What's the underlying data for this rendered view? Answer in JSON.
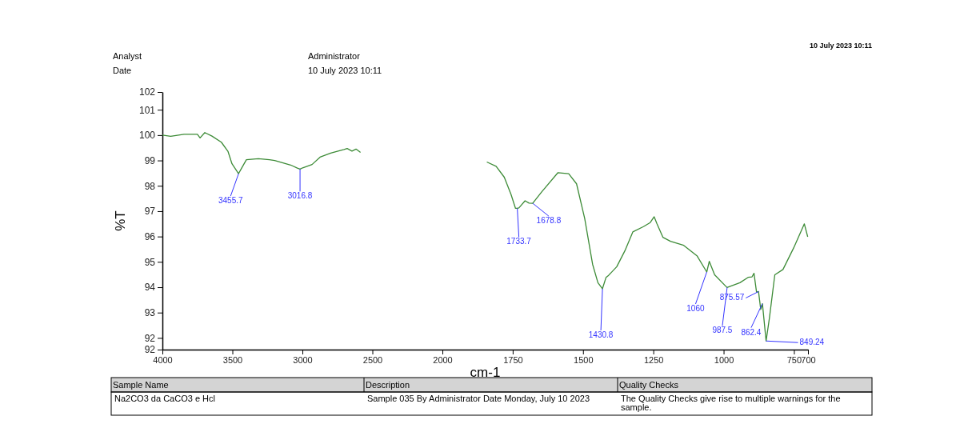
{
  "chart_data": [
    {
      "type": "line",
      "ylabel": "%T",
      "xlim": [
        4000,
        2000
      ],
      "xticks": [
        4000,
        3500,
        3000,
        2500,
        2000
      ],
      "ylim": [
        91.54,
        101.7
      ],
      "yticks": [
        {
          "value": 101.7,
          "label": "102"
        },
        101,
        100,
        99,
        98,
        97,
        96,
        95,
        94,
        93,
        92,
        {
          "value": 91.54,
          "label": "92"
        }
      ],
      "marker": "none",
      "line_style": "solid",
      "series": [
        {
          "color": "#3d8b37",
          "x": [
            4000,
            3941,
            3846,
            3750,
            3731,
            3697,
            3646,
            3579,
            3531,
            3503,
            3456,
            3434,
            3400,
            3314,
            3236,
            3198,
            3084,
            3036,
            3017,
            2998,
            2931,
            2874,
            2798,
            2703,
            2680,
            2646,
            2617,
            2585
          ],
          "values": [
            100.0,
            99.95,
            100.03,
            100.03,
            99.89,
            100.1,
            99.96,
            99.72,
            99.35,
            98.87,
            98.48,
            98.7,
            99.03,
            99.07,
            99.03,
            99.0,
            98.82,
            98.7,
            98.66,
            98.71,
            98.84,
            99.13,
            99.29,
            99.43,
            99.47,
            99.37,
            99.45,
            99.32
          ]
        }
      ],
      "annotations": [
        "Analyst",
        "Administrator",
        "Date",
        "10 July 2023 10:11",
        "10 July 2023 10:11",
        "Sample Name",
        "Description",
        "Quality Checks",
        "Na2CO3 da CaCO3 e Hcl",
        "Sample 035 By Administrator Date Monday, July 10 2023",
        "The Quality Checks give rise to multiple warnings for the sample.",
        {
          "text": "3455.7",
          "x": 3455.7,
          "y": 98.48
        },
        {
          "text": "3016.8",
          "x": 3016.8,
          "y": 98.66
        }
      ]
    },
    {
      "type": "line",
      "xlabel": "cm-1",
      "xlim": [
        2000,
        700
      ],
      "xticks": [
        1750,
        1500,
        1250,
        1000,
        750,
        700
      ],
      "ylim": [
        91.54,
        101.7
      ],
      "tick_labels": "x",
      "marker": "none",
      "line_style": "solid",
      "series": [
        {
          "color": "#3d8b37",
          "x": [
            1842,
            1809,
            1780,
            1756,
            1740,
            1734,
            1728,
            1706,
            1692,
            1679,
            1647,
            1589,
            1551,
            1523,
            1494,
            1466,
            1447,
            1431,
            1418,
            1409,
            1380,
            1351,
            1323,
            1285,
            1261,
            1247,
            1237,
            1216,
            1189,
            1142,
            1094,
            1060,
            1051,
            1032,
            988,
            942,
            913,
            899,
            892,
            883,
            876,
            868,
            862,
            849,
            837,
            818,
            789,
            751,
            713,
            701
          ],
          "values": [
            98.94,
            98.77,
            98.34,
            97.66,
            97.11,
            97.11,
            97.13,
            97.41,
            97.32,
            97.31,
            97.76,
            98.52,
            98.48,
            98.08,
            96.71,
            94.91,
            94.18,
            93.94,
            94.39,
            94.47,
            94.81,
            95.44,
            96.18,
            96.39,
            96.55,
            96.78,
            96.5,
            95.97,
            95.81,
            95.65,
            95.23,
            94.6,
            95.02,
            94.49,
            93.99,
            94.18,
            94.39,
            94.41,
            94.55,
            93.81,
            93.83,
            93.12,
            93.35,
            91.88,
            92.8,
            94.49,
            94.7,
            95.55,
            96.5,
            95.99
          ]
        }
      ],
      "annotations": [
        {
          "text": "1733.7",
          "x": 1733.7,
          "y": 97.11
        },
        {
          "text": "1678.8",
          "x": 1678.8,
          "y": 97.31
        },
        {
          "text": "1430.8",
          "x": 1430.8,
          "y": 93.94
        },
        {
          "text": "1060",
          "x": 1060,
          "y": 94.6
        },
        {
          "text": "987.5",
          "x": 987.5,
          "y": 93.99
        },
        {
          "text": "875.57",
          "x": 875.57,
          "y": 93.83
        },
        {
          "text": "862.4",
          "x": 862.4,
          "y": 93.35
        },
        {
          "text": "849.24",
          "x": 849.24,
          "y": 91.88
        }
      ]
    }
  ]
}
